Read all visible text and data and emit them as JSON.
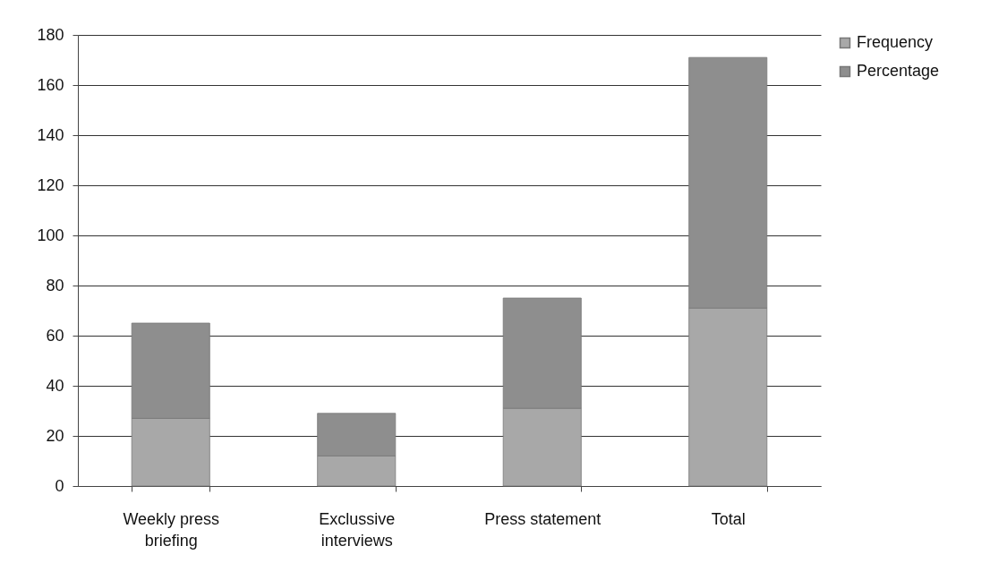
{
  "chart_data": {
    "type": "bar",
    "stacked": true,
    "categories": [
      "Weekly press briefing",
      "Exclussive interviews",
      "Press statement",
      "Total"
    ],
    "series": [
      {
        "name": "Frequency",
        "color": "#a8a8a8",
        "values": [
          27,
          12,
          31,
          71
        ]
      },
      {
        "name": "Percentage",
        "color": "#8e8e8e",
        "values": [
          38,
          17,
          44,
          100
        ]
      }
    ],
    "ylim": [
      0,
      180
    ],
    "yticks": [
      0,
      20,
      40,
      60,
      80,
      100,
      120,
      140,
      160,
      180
    ],
    "grid": "y",
    "legend": "right"
  }
}
